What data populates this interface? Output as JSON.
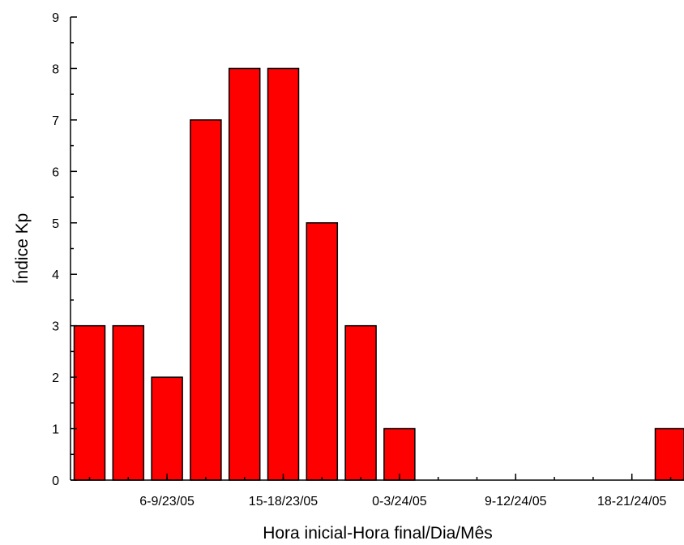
{
  "chart_data": {
    "type": "bar",
    "xlabel": "Hora inicial-Hora final/Dia/Mês",
    "ylabel": "Índice Kp",
    "ylim": [
      0,
      9
    ],
    "yticks": [
      0,
      1,
      2,
      3,
      4,
      5,
      6,
      7,
      8,
      9
    ],
    "xtick_labels": [
      {
        "index": 2,
        "label": "6-9/23/05"
      },
      {
        "index": 5,
        "label": "15-18/23/05"
      },
      {
        "index": 8,
        "label": "0-3/24/05"
      },
      {
        "index": 11,
        "label": "9-12/24/05"
      },
      {
        "index": 14,
        "label": "18-21/24/05"
      }
    ],
    "values": [
      3,
      3,
      2,
      7,
      8,
      8,
      5,
      3,
      1,
      0,
      0,
      0,
      0,
      0,
      0,
      1
    ],
    "bar_color": "#ff0000",
    "grid": false,
    "legend": "none"
  }
}
